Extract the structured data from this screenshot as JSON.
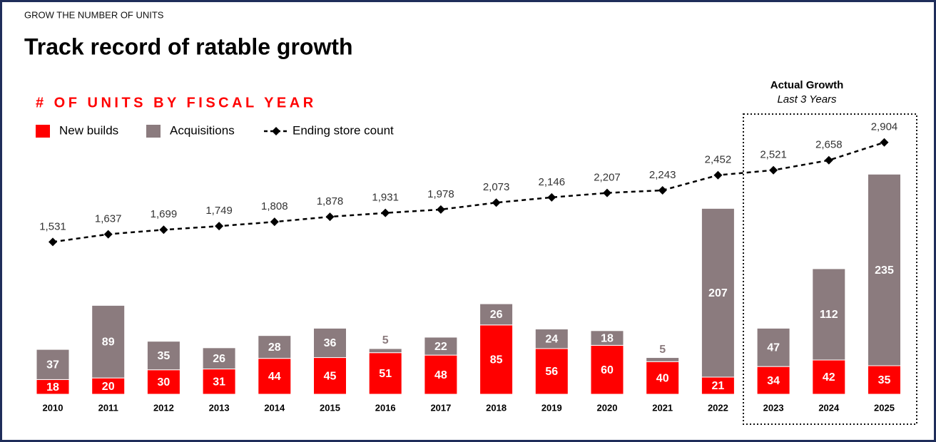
{
  "chart_data": {
    "type": "stacked-bar-line",
    "kicker": "GROW THE NUMBER OF UNITS",
    "title": "Track record of ratable growth",
    "subtitle": "# OF UNITS BY FISCAL YEAR",
    "annotation": {
      "title": "Actual Growth",
      "subtitle": "Last 3 Years"
    },
    "categories": [
      "2010",
      "2011",
      "2012",
      "2013",
      "2014",
      "2015",
      "2016",
      "2017",
      "2018",
      "2019",
      "2020",
      "2021",
      "2022",
      "2023",
      "2024",
      "2025"
    ],
    "series": [
      {
        "name": "New builds",
        "color": "#ff0000",
        "values": [
          18,
          20,
          30,
          31,
          44,
          45,
          51,
          48,
          85,
          56,
          60,
          40,
          21,
          34,
          42,
          35
        ]
      },
      {
        "name": "Acquisitions",
        "color": "#8b7b7e",
        "values": [
          37,
          89,
          35,
          26,
          28,
          36,
          5,
          22,
          26,
          24,
          18,
          5,
          207,
          47,
          112,
          235
        ]
      },
      {
        "name": "Ending store count",
        "color": "#000000",
        "axis": "y2",
        "values": [
          1531,
          1637,
          1699,
          1749,
          1808,
          1878,
          1931,
          1978,
          2073,
          2146,
          2207,
          2243,
          2452,
          2521,
          2658,
          2904
        ],
        "value_labels": [
          "1,531",
          "1,637",
          "1,699",
          "1,749",
          "1,808",
          "1,878",
          "1,931",
          "1,978",
          "2,073",
          "2,146",
          "2,207",
          "2,243",
          "2,452",
          "2,521",
          "2,658",
          "2,904"
        ]
      }
    ],
    "ylim": [
      0,
      300
    ],
    "y2lim": [
      0,
      3000
    ]
  }
}
